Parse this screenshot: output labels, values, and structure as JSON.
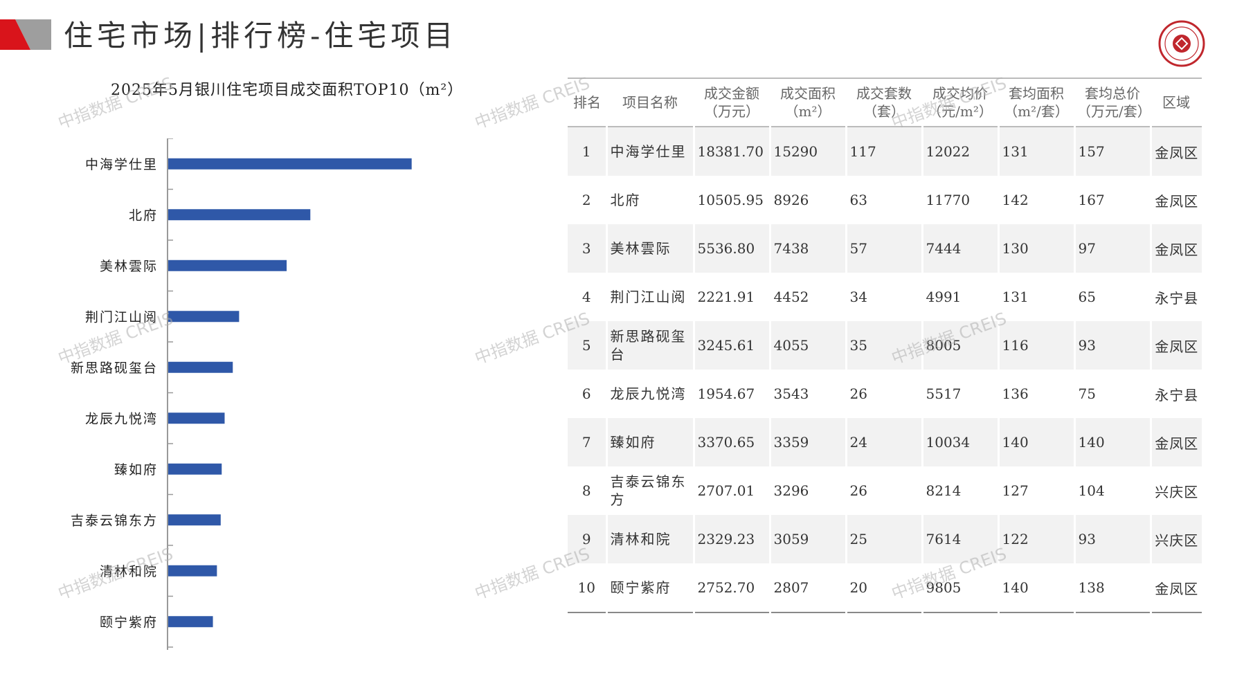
{
  "header": {
    "title": "住宅市场|排行榜-住宅项目",
    "deco_colors": [
      "#d9141b",
      "#9e9e9e"
    ],
    "logo_icon": "china-index-academy-seal-icon",
    "logo_color": "#c0272d"
  },
  "watermark": {
    "text": "中指数据 CREIS"
  },
  "chart_data": {
    "type": "bar",
    "orientation": "horizontal",
    "title": "2025年5月银川住宅项目成交面积TOP10（m²）",
    "categories": [
      "中海学仕里",
      "北府",
      "美林雲际",
      "荆门江山阅",
      "新思路砚玺台",
      "龙辰九悦湾",
      "臻如府",
      "吉泰云锦东方",
      "清林和院",
      "颐宁紫府"
    ],
    "values": [
      15290,
      8926,
      7438,
      4452,
      4055,
      3543,
      3359,
      3296,
      3059,
      2807
    ],
    "xlim": [
      0,
      20000
    ],
    "bar_color": "#2f58a8",
    "grid": false,
    "legend": "none"
  },
  "table": {
    "headers": [
      [
        "排名"
      ],
      [
        "项目名称"
      ],
      [
        "成交金额",
        "（万元）"
      ],
      [
        "成交面积",
        "（m²）"
      ],
      [
        "成交套数",
        "（套）"
      ],
      [
        "成交均价",
        "（元/m²）"
      ],
      [
        "套均面积",
        "（m²/套）"
      ],
      [
        "套均总价",
        "（万元/套）"
      ],
      [
        "区域"
      ]
    ],
    "rows": [
      [
        "1",
        "中海学仕里",
        "18381.70",
        "15290",
        "117",
        "12022",
        "131",
        "157",
        "金凤区"
      ],
      [
        "2",
        "北府",
        "10505.95",
        "8926",
        "63",
        "11770",
        "142",
        "167",
        "金凤区"
      ],
      [
        "3",
        "美林雲际",
        "5536.80",
        "7438",
        "57",
        "7444",
        "130",
        "97",
        "金凤区"
      ],
      [
        "4",
        "荆门江山阅",
        "2221.91",
        "4452",
        "34",
        "4991",
        "131",
        "65",
        "永宁县"
      ],
      [
        "5",
        "新思路砚玺台",
        "3245.61",
        "4055",
        "35",
        "8005",
        "116",
        "93",
        "金凤区"
      ],
      [
        "6",
        "龙辰九悦湾",
        "1954.67",
        "3543",
        "26",
        "5517",
        "136",
        "75",
        "永宁县"
      ],
      [
        "7",
        "臻如府",
        "3370.65",
        "3359",
        "24",
        "10034",
        "140",
        "140",
        "金凤区"
      ],
      [
        "8",
        "吉泰云锦东方",
        "2707.01",
        "3296",
        "26",
        "8214",
        "127",
        "104",
        "兴庆区"
      ],
      [
        "9",
        "清林和院",
        "2329.23",
        "3059",
        "25",
        "7614",
        "122",
        "93",
        "兴庆区"
      ],
      [
        "10",
        "颐宁紫府",
        "2752.70",
        "2807",
        "20",
        "9805",
        "140",
        "138",
        "金凤区"
      ]
    ]
  }
}
